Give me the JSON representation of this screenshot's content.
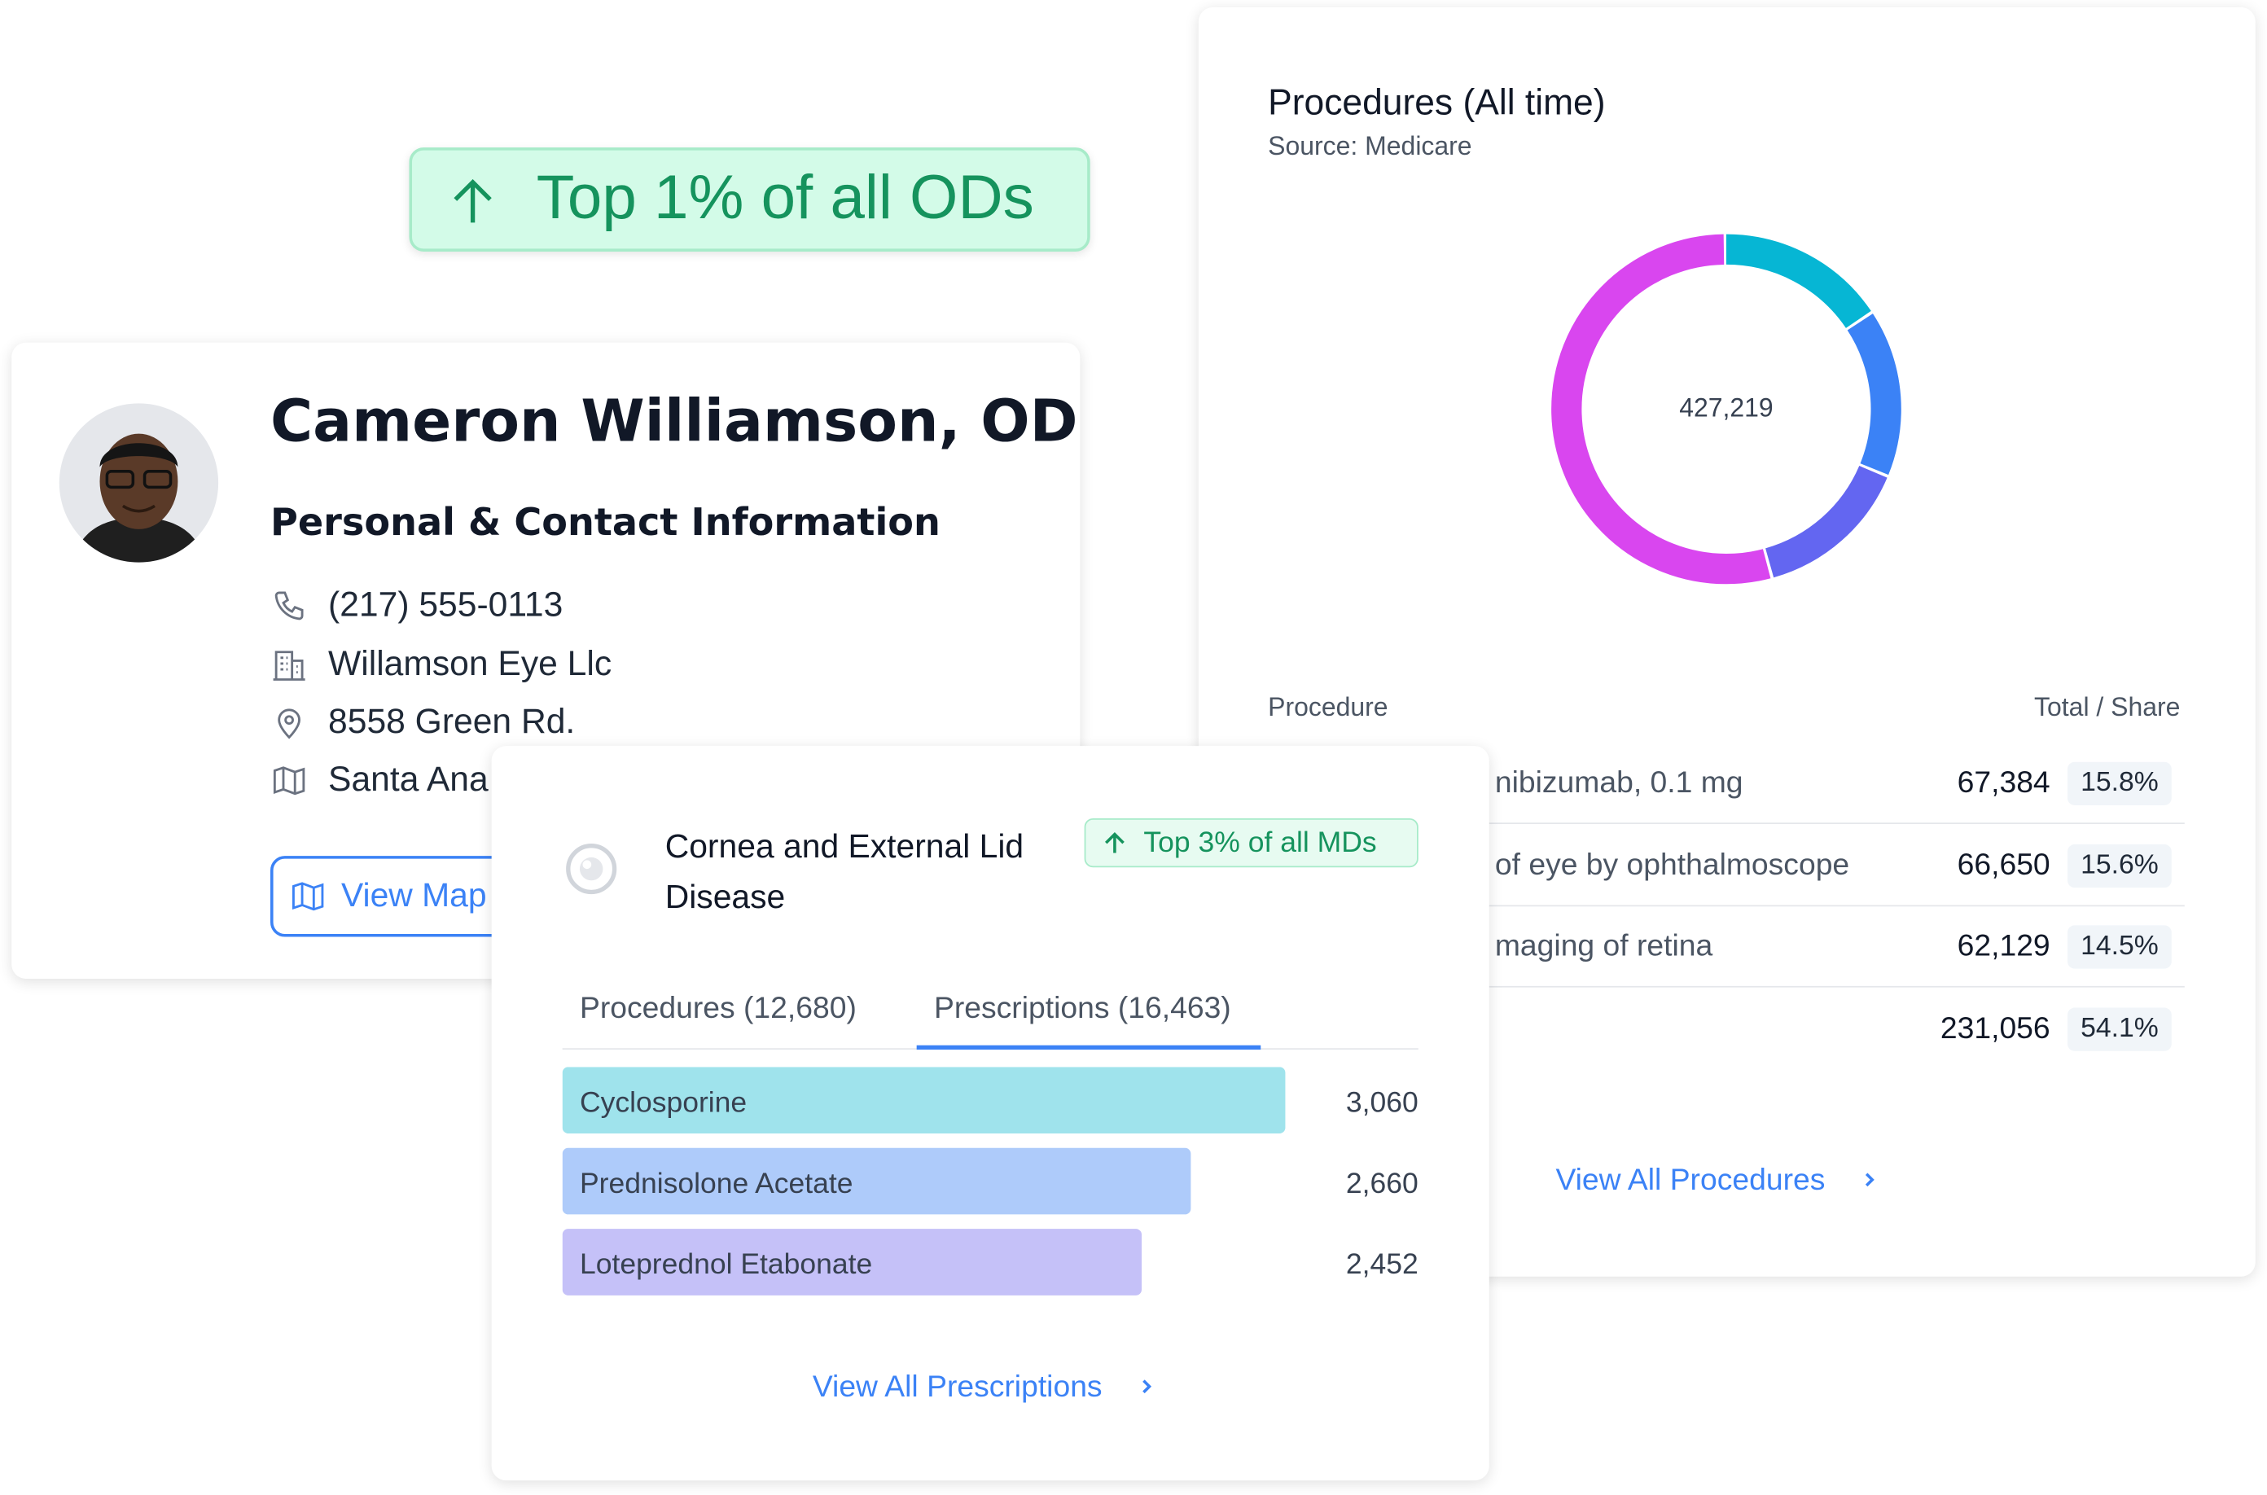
{
  "badge": "Top 1% of all ODs",
  "profile": {
    "name": "Cameron Williamson, OD",
    "section_title": "Personal & Contact Information",
    "phone": "(217) 555-0113",
    "company": "Willamson Eye Llc",
    "address": "8558 Green Rd.",
    "city": "Santa Ana",
    "view_map": "View Map"
  },
  "procedures_card": {
    "title": "Procedures (All time)",
    "source": "Source: Medicare",
    "total": "427,219",
    "columns": [
      "Procedure",
      "Total / Share"
    ],
    "rows": [
      {
        "name": "nibizumab, 0.1 mg",
        "total": "67,384"
      },
      {
        "name": "of eye by ophthalmoscope",
        "total": "66,650"
      },
      {
        "name": "maging of retina",
        "total": "62,129"
      },
      {
        "name": null,
        "total": "231,056"
      }
    ],
    "link": "View All Procedures"
  },
  "specialty_card": {
    "title": "Cornea and External Lid Disease",
    "badge": "Top 3% of all MDs",
    "tabs": [
      "Procedures (12,680)",
      "Prescriptions (16,463)"
    ],
    "link": "View All Prescriptions"
  },
  "chart_data": [
    {
      "type": "pie",
      "categories": [
        "nibizumab, 0.1 mg",
        "of eye by ophthalmoscope",
        "maging of retina",
        null
      ],
      "values": [
        15.8,
        15.6,
        14.5,
        54.1
      ],
      "value_labels": [
        "15.8%",
        "15.6%",
        "14.5%",
        "54.1%"
      ],
      "colors": [
        "#06b6d4",
        "#3b82f6",
        "#6366f1",
        "#d946ef"
      ]
    },
    {
      "type": "bar",
      "categories": [
        "Cyclosporine",
        "Prednisolone Acetate",
        "Loteprednol Etabonate"
      ],
      "values": [
        3060,
        2660,
        2452
      ],
      "value_labels": [
        "3,060",
        "2,660",
        "2,452"
      ],
      "colors": [
        "#9fe3ec",
        "#aecbfa",
        "#c5c1f8"
      ]
    }
  ]
}
